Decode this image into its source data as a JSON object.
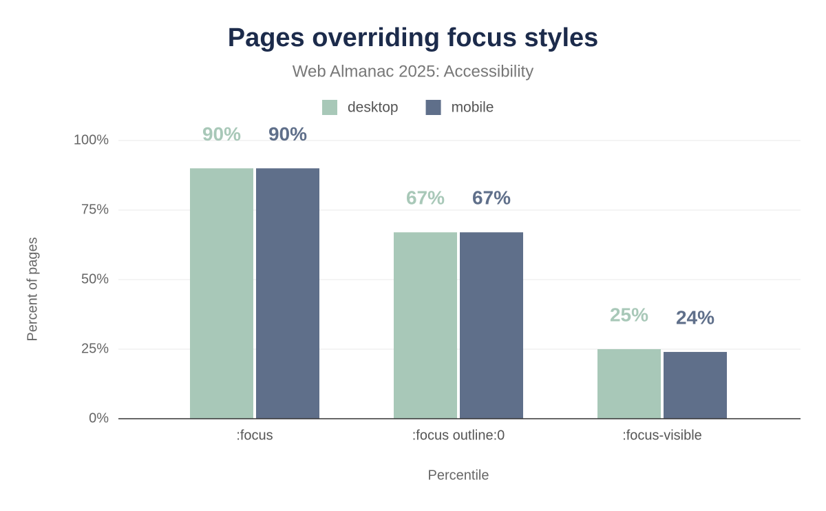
{
  "chart_data": {
    "type": "bar",
    "title": "Pages overriding focus styles",
    "subtitle": "Web Almanac 2025: Accessibility",
    "x_label": "Percentile",
    "y_label": "Percent of pages",
    "categories": [
      ":focus",
      ":focus outline:0",
      ":focus-visible"
    ],
    "series": [
      {
        "name": "desktop",
        "color": "#a8c8b8",
        "values": [
          90,
          67,
          25
        ],
        "value_labels": [
          "90%",
          "67%",
          "25%"
        ]
      },
      {
        "name": "mobile",
        "color": "#5f6f8a",
        "values": [
          90,
          67,
          24
        ],
        "value_labels": [
          "90%",
          "67%",
          "24%"
        ]
      }
    ],
    "ylim": [
      0,
      100
    ],
    "yticks": [
      {
        "value": 0,
        "label": "0%"
      },
      {
        "value": 25,
        "label": "25%"
      },
      {
        "value": 50,
        "label": "50%"
      },
      {
        "value": 75,
        "label": "75%"
      },
      {
        "value": 100,
        "label": "100%"
      }
    ],
    "grid": true,
    "legend": "top"
  }
}
